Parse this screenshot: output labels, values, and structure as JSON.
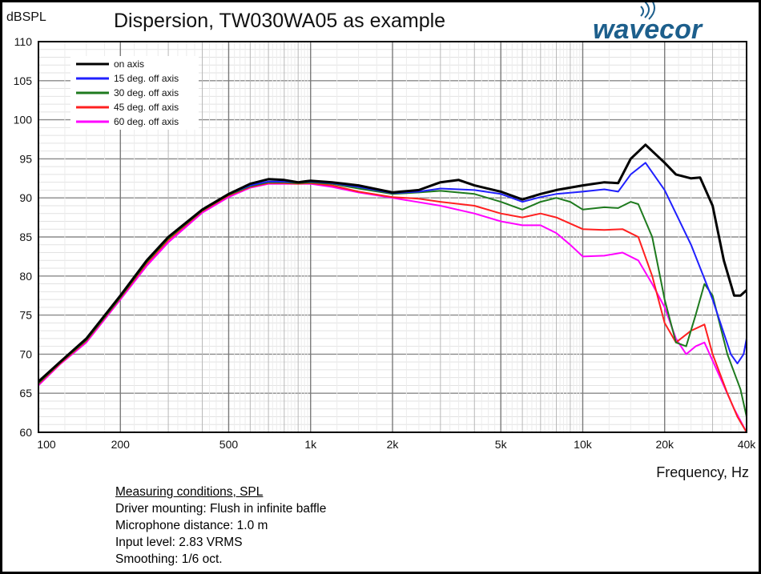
{
  "chart_data": {
    "type": "line",
    "title": "Dispersion, TW030WA05 as example",
    "ylabel": "dBSPL",
    "xlabel": "Frequency, Hz",
    "xscale": "log",
    "xlim": [
      100,
      40000
    ],
    "ylim": [
      60,
      110
    ],
    "grid": true,
    "legend_position": "top-left",
    "x_ticks": [
      {
        "v": 100,
        "label": "100"
      },
      {
        "v": 200,
        "label": "200"
      },
      {
        "v": 500,
        "label": "500"
      },
      {
        "v": 1000,
        "label": "1k"
      },
      {
        "v": 2000,
        "label": "2k"
      },
      {
        "v": 5000,
        "label": "5k"
      },
      {
        "v": 10000,
        "label": "10k"
      },
      {
        "v": 20000,
        "label": "20k"
      },
      {
        "v": 40000,
        "label": "40k"
      }
    ],
    "y_ticks": [
      60,
      65,
      70,
      75,
      80,
      85,
      90,
      95,
      100,
      105,
      110
    ],
    "series": [
      {
        "name": "on axis",
        "color": "#000000",
        "points": [
          [
            100,
            66.5
          ],
          [
            120,
            69
          ],
          [
            150,
            72
          ],
          [
            200,
            77.5
          ],
          [
            250,
            82
          ],
          [
            300,
            85
          ],
          [
            400,
            88.5
          ],
          [
            500,
            90.5
          ],
          [
            600,
            91.8
          ],
          [
            700,
            92.4
          ],
          [
            800,
            92.3
          ],
          [
            900,
            92
          ],
          [
            1000,
            92.2
          ],
          [
            1200,
            92
          ],
          [
            1500,
            91.6
          ],
          [
            2000,
            90.7
          ],
          [
            2500,
            91
          ],
          [
            3000,
            92
          ],
          [
            3500,
            92.3
          ],
          [
            4000,
            91.6
          ],
          [
            5000,
            90.8
          ],
          [
            6000,
            89.8
          ],
          [
            7000,
            90.5
          ],
          [
            8000,
            91
          ],
          [
            10000,
            91.6
          ],
          [
            12000,
            92
          ],
          [
            13500,
            91.9
          ],
          [
            15000,
            95
          ],
          [
            17000,
            96.8
          ],
          [
            20000,
            94.5
          ],
          [
            22000,
            93
          ],
          [
            25000,
            92.5
          ],
          [
            27000,
            92.6
          ],
          [
            30000,
            89
          ],
          [
            33000,
            82
          ],
          [
            36000,
            77.5
          ],
          [
            38000,
            77.5
          ],
          [
            40000,
            78.2
          ]
        ]
      },
      {
        "name": "15 deg. off axis",
        "color": "#2020ff",
        "points": [
          [
            100,
            66.5
          ],
          [
            120,
            69
          ],
          [
            150,
            72
          ],
          [
            200,
            77.5
          ],
          [
            250,
            82
          ],
          [
            300,
            85
          ],
          [
            400,
            88.5
          ],
          [
            500,
            90.5
          ],
          [
            600,
            91.6
          ],
          [
            700,
            92.1
          ],
          [
            800,
            92.1
          ],
          [
            900,
            92
          ],
          [
            1000,
            92.1
          ],
          [
            1200,
            91.9
          ],
          [
            1500,
            91.4
          ],
          [
            2000,
            90.6
          ],
          [
            2500,
            90.8
          ],
          [
            3000,
            91.2
          ],
          [
            4000,
            91
          ],
          [
            5000,
            90.5
          ],
          [
            6000,
            89.5
          ],
          [
            7000,
            90.1
          ],
          [
            8000,
            90.5
          ],
          [
            10000,
            90.8
          ],
          [
            12000,
            91.1
          ],
          [
            13500,
            90.8
          ],
          [
            15000,
            93
          ],
          [
            17000,
            94.5
          ],
          [
            20000,
            91
          ],
          [
            25000,
            84
          ],
          [
            30000,
            77
          ],
          [
            35000,
            70
          ],
          [
            37000,
            68.8
          ],
          [
            39000,
            70
          ],
          [
            40000,
            72
          ]
        ]
      },
      {
        "name": "30 deg. off axis",
        "color": "#1e7a1e",
        "points": [
          [
            100,
            66.3
          ],
          [
            120,
            68.9
          ],
          [
            150,
            71.8
          ],
          [
            200,
            77.3
          ],
          [
            250,
            81.8
          ],
          [
            300,
            84.8
          ],
          [
            400,
            88.4
          ],
          [
            500,
            90.4
          ],
          [
            600,
            91.5
          ],
          [
            700,
            92
          ],
          [
            800,
            92
          ],
          [
            900,
            91.9
          ],
          [
            1000,
            92
          ],
          [
            1200,
            91.8
          ],
          [
            1500,
            91.2
          ],
          [
            2000,
            90.5
          ],
          [
            2500,
            90.7
          ],
          [
            3000,
            90.9
          ],
          [
            4000,
            90.5
          ],
          [
            5000,
            89.5
          ],
          [
            6000,
            88.5
          ],
          [
            7000,
            89.5
          ],
          [
            8000,
            90
          ],
          [
            9000,
            89.5
          ],
          [
            10000,
            88.5
          ],
          [
            12000,
            88.8
          ],
          [
            13500,
            88.7
          ],
          [
            15000,
            89.5
          ],
          [
            16000,
            89.2
          ],
          [
            18000,
            85
          ],
          [
            20000,
            77
          ],
          [
            22000,
            71.5
          ],
          [
            24000,
            71
          ],
          [
            26000,
            75
          ],
          [
            28000,
            79
          ],
          [
            30000,
            77.5
          ],
          [
            34000,
            70
          ],
          [
            38000,
            65.5
          ],
          [
            40000,
            62
          ]
        ]
      },
      {
        "name": "45 deg. off axis",
        "color": "#ff2020",
        "points": [
          [
            100,
            66.2
          ],
          [
            120,
            68.8
          ],
          [
            150,
            71.7
          ],
          [
            200,
            77.2
          ],
          [
            250,
            81.6
          ],
          [
            300,
            84.6
          ],
          [
            400,
            88.3
          ],
          [
            500,
            90.3
          ],
          [
            600,
            91.4
          ],
          [
            700,
            91.9
          ],
          [
            800,
            91.9
          ],
          [
            900,
            91.8
          ],
          [
            1000,
            91.9
          ],
          [
            1200,
            91.6
          ],
          [
            1500,
            90.8
          ],
          [
            2000,
            90.1
          ],
          [
            2500,
            89.9
          ],
          [
            3000,
            89.5
          ],
          [
            4000,
            89
          ],
          [
            5000,
            88
          ],
          [
            6000,
            87.5
          ],
          [
            7000,
            88
          ],
          [
            8000,
            87.5
          ],
          [
            10000,
            86
          ],
          [
            12000,
            85.9
          ],
          [
            14000,
            86
          ],
          [
            16000,
            85
          ],
          [
            18000,
            80
          ],
          [
            20000,
            74
          ],
          [
            22000,
            71.5
          ],
          [
            25000,
            73
          ],
          [
            28000,
            73.8
          ],
          [
            30000,
            70
          ],
          [
            34000,
            65
          ],
          [
            37000,
            62
          ],
          [
            40000,
            60
          ]
        ]
      },
      {
        "name": "60 deg. off axis",
        "color": "#ff00ff",
        "points": [
          [
            100,
            66
          ],
          [
            120,
            68.7
          ],
          [
            150,
            71.5
          ],
          [
            200,
            77
          ],
          [
            250,
            81.3
          ],
          [
            300,
            84.3
          ],
          [
            400,
            88.1
          ],
          [
            500,
            90.1
          ],
          [
            600,
            91.3
          ],
          [
            700,
            91.8
          ],
          [
            800,
            91.8
          ],
          [
            900,
            91.8
          ],
          [
            1000,
            91.8
          ],
          [
            1200,
            91.4
          ],
          [
            1500,
            90.7
          ],
          [
            2000,
            90
          ],
          [
            3000,
            89
          ],
          [
            4000,
            88
          ],
          [
            5000,
            87
          ],
          [
            6000,
            86.5
          ],
          [
            7000,
            86.5
          ],
          [
            8000,
            85.5
          ],
          [
            9000,
            84
          ],
          [
            10000,
            82.5
          ],
          [
            12000,
            82.6
          ],
          [
            14000,
            83
          ],
          [
            16000,
            82
          ],
          [
            18000,
            79
          ],
          [
            20000,
            76
          ],
          [
            22000,
            72
          ],
          [
            24000,
            70
          ],
          [
            26000,
            71
          ],
          [
            28000,
            71.5
          ],
          [
            32000,
            67
          ],
          [
            36000,
            63
          ],
          [
            40000,
            60
          ]
        ]
      }
    ]
  },
  "logo": {
    "text": "wavecor",
    "color": "#1d5f8c"
  },
  "notes": {
    "heading": "Measuring conditions, SPL",
    "lines": [
      "Driver mounting: Flush in infinite baffle",
      "Microphone distance: 1.0 m",
      "Input level: 2.83 VRMS",
      "Smoothing: 1/6 oct."
    ]
  }
}
